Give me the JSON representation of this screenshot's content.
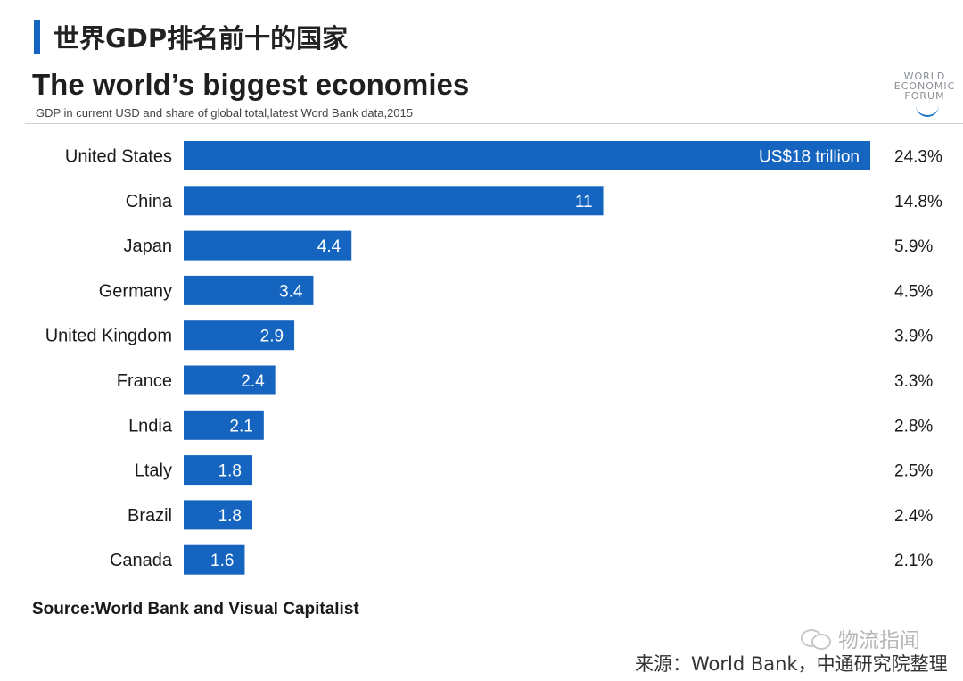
{
  "header": {
    "cn_title": "世界GDP排名前十的国家",
    "title": "The world’s biggest economies",
    "subtitle": "GDP in current USD and share of global total,latest Word Bank data,2015"
  },
  "logo": {
    "lines": [
      "WORLD",
      "ECONOMIC",
      "FORUM"
    ]
  },
  "chart_data": {
    "type": "bar",
    "orientation": "horizontal",
    "title": "The world’s biggest economies",
    "subtitle": "GDP in current USD and share of global total,latest Word Bank data,2015",
    "xlabel": "",
    "ylabel": "",
    "xlim": [
      0,
      18
    ],
    "grid": false,
    "legend": "none",
    "categories": [
      "United States",
      "China",
      "Japan",
      "Germany",
      "United Kingdom",
      "France",
      "Lndia",
      "Ltaly",
      "Brazil",
      "Canada"
    ],
    "values": [
      18,
      11,
      4.4,
      3.4,
      2.9,
      2.4,
      2.1,
      1.8,
      1.8,
      1.6
    ],
    "value_labels": [
      "US$18 trillion",
      "11",
      "4.4",
      "3.4",
      "2.9",
      "2.4",
      "2.1",
      "1.8",
      "1.8",
      "1.6"
    ],
    "share_labels": [
      "24.3%",
      "14.8%",
      "5.9%",
      "4.5%",
      "3.9%",
      "3.3%",
      "2.8%",
      "2.5%",
      "2.4%",
      "2.1%"
    ],
    "bar_color": "#1565c0",
    "label_color": "#ffffff",
    "text_color": "#1a1a1a"
  },
  "source": "Source:World Bank and Visual Capitalist",
  "watermark": "物流指闻",
  "footnote": "来源：World Bank，中通研究院整理",
  "colors": {
    "accent": "#1565c0",
    "watermark": "#b7b7b7"
  }
}
